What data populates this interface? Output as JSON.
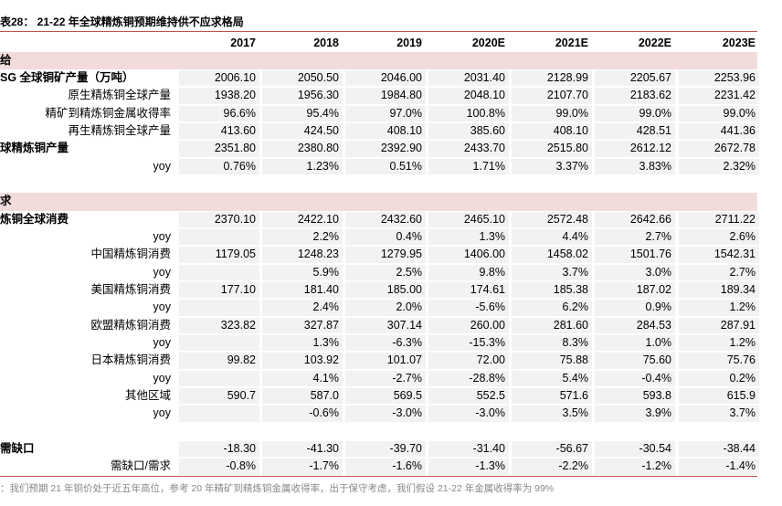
{
  "title": "表28：  21-22 年全球精炼铜预期维持供不应求格局",
  "table": {
    "columns": [
      "2017",
      "2018",
      "2019",
      "2020E",
      "2021E",
      "2022E",
      "2023E"
    ],
    "sections": [
      {
        "title": "给",
        "rows": [
          {
            "label": "SG 全球铜矿产量（万吨）",
            "bold": true,
            "values": [
              "2006.10",
              "2050.50",
              "2046.00",
              "2031.40",
              "2128.99",
              "2205.67",
              "2253.96"
            ]
          },
          {
            "label": "原生精炼铜全球产量",
            "bold": false,
            "values": [
              "1938.20",
              "1956.30",
              "1984.80",
              "2048.10",
              "2107.70",
              "2183.62",
              "2231.42"
            ]
          },
          {
            "label": "精矿到精炼铜金属收得率",
            "bold": false,
            "values": [
              "96.6%",
              "95.4%",
              "97.0%",
              "100.8%",
              "99.0%",
              "99.0%",
              "99.0%"
            ]
          },
          {
            "label": "再生精炼铜全球产量",
            "bold": false,
            "values": [
              "413.60",
              "424.50",
              "408.10",
              "385.60",
              "408.10",
              "428.51",
              "441.36"
            ]
          },
          {
            "label": "球精炼铜产量",
            "bold": true,
            "values": [
              "2351.80",
              "2380.80",
              "2392.90",
              "2433.70",
              "2515.80",
              "2612.12",
              "2672.78"
            ]
          },
          {
            "label": "yoy",
            "bold": false,
            "values": [
              "0.76%",
              "1.23%",
              "0.51%",
              "1.71%",
              "3.37%",
              "3.83%",
              "2.32%"
            ]
          }
        ]
      },
      {
        "title": "求",
        "rows": [
          {
            "label": "炼铜全球消费",
            "bold": true,
            "values": [
              "2370.10",
              "2422.10",
              "2432.60",
              "2465.10",
              "2572.48",
              "2642.66",
              "2711.22"
            ]
          },
          {
            "label": "yoy",
            "bold": false,
            "values": [
              null,
              "2.2%",
              "0.4%",
              "1.3%",
              "4.4%",
              "2.7%",
              "2.6%"
            ]
          },
          {
            "label": "中国精炼铜消费",
            "bold": false,
            "values": [
              "1179.05",
              "1248.23",
              "1279.95",
              "1406.00",
              "1458.02",
              "1501.76",
              "1542.31"
            ]
          },
          {
            "label": "yoy",
            "bold": false,
            "values": [
              null,
              "5.9%",
              "2.5%",
              "9.8%",
              "3.7%",
              "3.0%",
              "2.7%"
            ]
          },
          {
            "label": "美国精炼铜消费",
            "bold": false,
            "values": [
              "177.10",
              "181.40",
              "185.00",
              "174.61",
              "185.38",
              "187.02",
              "189.34"
            ]
          },
          {
            "label": "yoy",
            "bold": false,
            "values": [
              null,
              "2.4%",
              "2.0%",
              "-5.6%",
              "6.2%",
              "0.9%",
              "1.2%"
            ]
          },
          {
            "label": "欧盟精炼铜消费",
            "bold": false,
            "values": [
              "323.82",
              "327.87",
              "307.14",
              "260.00",
              "281.60",
              "284.53",
              "287.91"
            ]
          },
          {
            "label": "yoy",
            "bold": false,
            "values": [
              null,
              "1.3%",
              "-6.3%",
              "-15.3%",
              "8.3%",
              "1.0%",
              "1.2%"
            ]
          },
          {
            "label": "日本精炼铜消费",
            "bold": false,
            "values": [
              "99.82",
              "103.92",
              "101.07",
              "72.00",
              "75.88",
              "75.60",
              "75.76"
            ]
          },
          {
            "label": "yoy",
            "bold": false,
            "values": [
              null,
              "4.1%",
              "-2.7%",
              "-28.8%",
              "5.4%",
              "-0.4%",
              "0.2%"
            ]
          },
          {
            "label": "其他区域",
            "bold": false,
            "values": [
              "590.7",
              "587.0",
              "569.5",
              "552.5",
              "571.6",
              "593.8",
              "615.9"
            ]
          },
          {
            "label": "yoy",
            "bold": false,
            "values": [
              null,
              "-0.6%",
              "-3.0%",
              "-3.0%",
              "3.5%",
              "3.9%",
              "3.7%"
            ]
          }
        ]
      },
      {
        "title": null,
        "rows": [
          {
            "label": "需缺口",
            "bold": true,
            "values": [
              "-18.30",
              "-41.30",
              "-39.70",
              "-31.40",
              "-56.67",
              "-30.54",
              "-38.44"
            ]
          },
          {
            "label": "需缺口/需求",
            "bold": false,
            "values": [
              "-0.8%",
              "-1.7%",
              "-1.6%",
              "-1.3%",
              "-2.2%",
              "-1.2%",
              "-1.4%"
            ]
          }
        ]
      }
    ]
  },
  "footnote": "：我们预期 21 年铜价处于近五年高位，参考 20 年精矿到精炼铜金属收得率，出于保守考虑，我们假设 21-22 年金属收得率为 99%"
}
